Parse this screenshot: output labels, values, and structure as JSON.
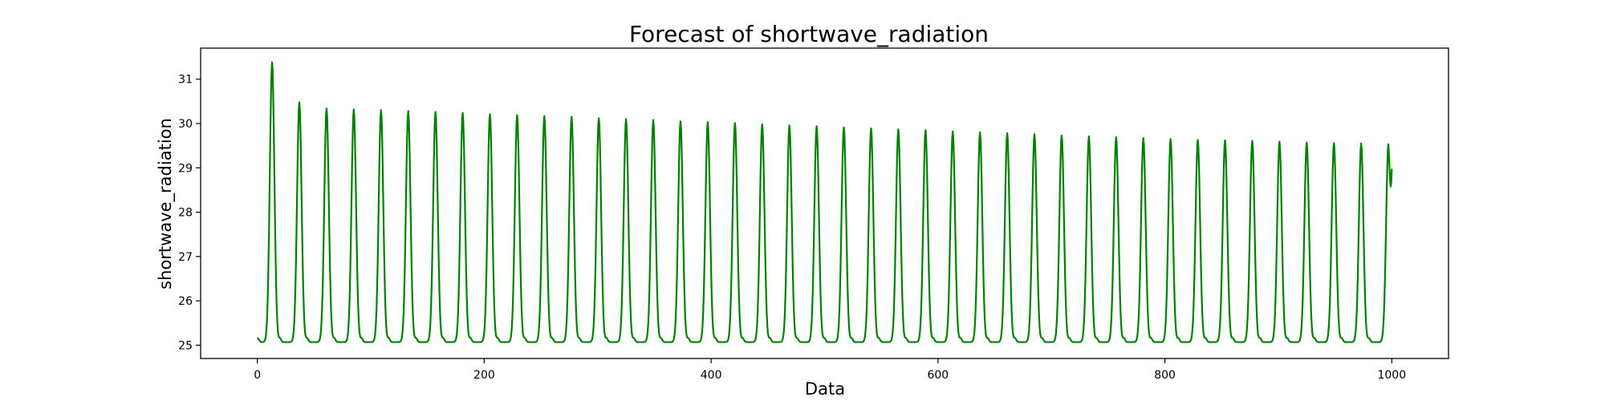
{
  "chart_data": {
    "type": "line",
    "title": "Forecast of shortwave_radiation",
    "xlabel": "Data",
    "ylabel": "shortwave_radiation",
    "xlim": [
      -50,
      1050
    ],
    "ylim": [
      24.7,
      31.7
    ],
    "xticks": [
      0,
      200,
      400,
      600,
      800,
      1000
    ],
    "yticks": [
      25,
      26,
      27,
      28,
      29,
      30,
      31
    ],
    "grid": false,
    "legend": "none",
    "series": [
      {
        "color": "#008000",
        "x_start": 0,
        "x_end": 1000,
        "period": 24,
        "baseline": 25.07,
        "start_value": 25.17,
        "end_value": 28.98,
        "peaks": [
          {
            "x": 13,
            "y": 31.38
          },
          {
            "x": 37,
            "y": 30.48
          },
          {
            "x": 61,
            "y": 30.34
          },
          {
            "x": 85,
            "y": 30.32
          },
          {
            "x": 109,
            "y": 30.3
          },
          {
            "x": 133,
            "y": 30.28
          },
          {
            "x": 157,
            "y": 30.26
          },
          {
            "x": 181,
            "y": 30.24
          },
          {
            "x": 205,
            "y": 30.21
          },
          {
            "x": 229,
            "y": 30.19
          },
          {
            "x": 253,
            "y": 30.17
          },
          {
            "x": 277,
            "y": 30.15
          },
          {
            "x": 301,
            "y": 30.12
          },
          {
            "x": 325,
            "y": 30.1
          },
          {
            "x": 349,
            "y": 30.08
          },
          {
            "x": 373,
            "y": 30.05
          },
          {
            "x": 397,
            "y": 30.03
          },
          {
            "x": 421,
            "y": 30.01
          },
          {
            "x": 445,
            "y": 29.98
          },
          {
            "x": 469,
            "y": 29.96
          },
          {
            "x": 493,
            "y": 29.94
          },
          {
            "x": 517,
            "y": 29.91
          },
          {
            "x": 541,
            "y": 29.89
          },
          {
            "x": 565,
            "y": 29.87
          },
          {
            "x": 589,
            "y": 29.85
          },
          {
            "x": 613,
            "y": 29.82
          },
          {
            "x": 637,
            "y": 29.8
          },
          {
            "x": 661,
            "y": 29.78
          },
          {
            "x": 685,
            "y": 29.76
          },
          {
            "x": 709,
            "y": 29.73
          },
          {
            "x": 733,
            "y": 29.71
          },
          {
            "x": 757,
            "y": 29.69
          },
          {
            "x": 781,
            "y": 29.67
          },
          {
            "x": 805,
            "y": 29.65
          },
          {
            "x": 829,
            "y": 29.63
          },
          {
            "x": 853,
            "y": 29.62
          },
          {
            "x": 877,
            "y": 29.61
          },
          {
            "x": 901,
            "y": 29.59
          },
          {
            "x": 925,
            "y": 29.57
          },
          {
            "x": 949,
            "y": 29.56
          },
          {
            "x": 973,
            "y": 29.55
          },
          {
            "x": 997,
            "y": 29.53
          }
        ]
      }
    ]
  }
}
